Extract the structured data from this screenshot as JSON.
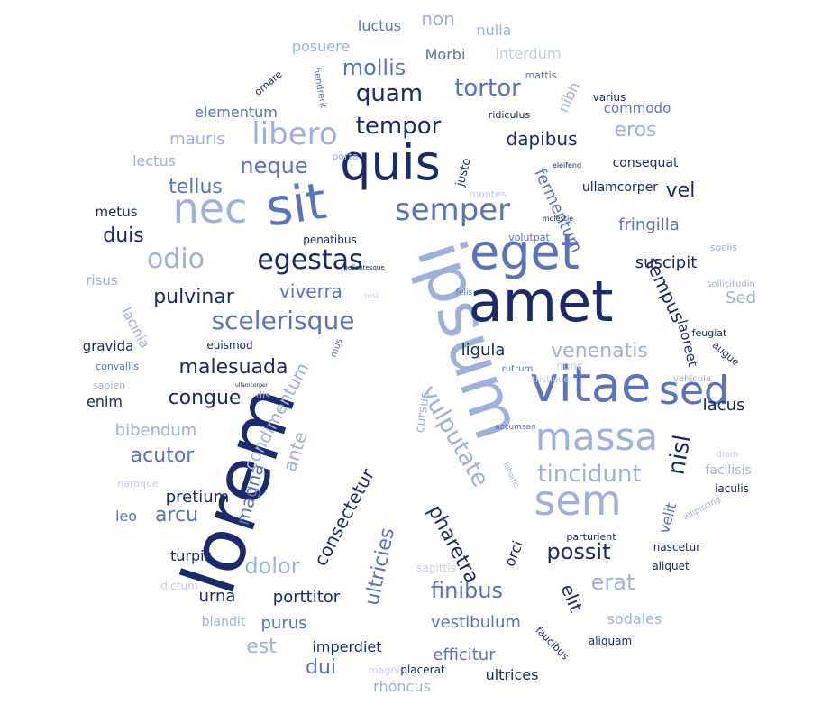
{
  "palette": {
    "navy": "#1a2a6c",
    "medium": "#5a72c2",
    "light": "#9fb0dc",
    "pale": "#c3cde9"
  },
  "words": [
    "lorem",
    "ipsum",
    "amet",
    "sit",
    "quis",
    "vitae",
    "eget",
    "nec",
    "massa",
    "sem",
    "sed",
    "semper",
    "libero",
    "egestas",
    "scelerisque",
    "odio",
    "tortor",
    "quam",
    "tempor",
    "mollis",
    "neque",
    "dapibus",
    "eros",
    "tellus",
    "vel",
    "duis",
    "pulvinar",
    "viverra",
    "malesuada",
    "congue",
    "venenatis",
    "tincidunt",
    "vulputate",
    "pharetra",
    "possit",
    "nisl",
    "erat",
    "finibus",
    "elit",
    "dolor",
    "magna",
    "arcu",
    "acutor",
    "condimentum",
    "ante",
    "consectetur",
    "ultricies",
    "fermentum",
    "tempus",
    "ligula",
    "fringilla",
    "suscipit",
    "lacus",
    "urna",
    "porttitor",
    "purus",
    "est",
    "dui",
    "vestibulum",
    "efficitur",
    "imperdiet",
    "rhoncus",
    "ultrices",
    "orci",
    "velit",
    "Sed",
    "laoreet",
    "pretium",
    "leo",
    "enim",
    "bibendum",
    "gravida",
    "risus",
    "lacinia",
    "metus",
    "lectus",
    "mauris",
    "elementum",
    "posuere",
    "luctus",
    "non",
    "nulla",
    "Morbi",
    "interdum",
    "nibh",
    "mattis",
    "varius",
    "ridiculus",
    "commodo",
    "consequat",
    "ullamcorper",
    "justo",
    "porta",
    "montes",
    "penatibus",
    "volutpat",
    "sociis",
    "sollicitudin",
    "felis",
    "nisi",
    "mus",
    "euismod",
    "feugiat",
    "augue",
    "vehicula",
    "tristique",
    "rutrum",
    "nunc",
    "cursus",
    "accumsan",
    "lobortis",
    "sapien",
    "convallis",
    "dis",
    "natoque",
    "iaculis",
    "diam",
    "facilisis",
    "adipiscing",
    "nascetur",
    "aliquet",
    "parturient",
    "sagittis",
    "dictum",
    "turpis",
    "blandit",
    "sodales",
    "aliquam",
    "faucibus",
    "magnis",
    "placerat",
    "hendrerit",
    "ornare",
    "molestie",
    "eleifend",
    "pellentesque",
    "ullamcorper"
  ]
}
